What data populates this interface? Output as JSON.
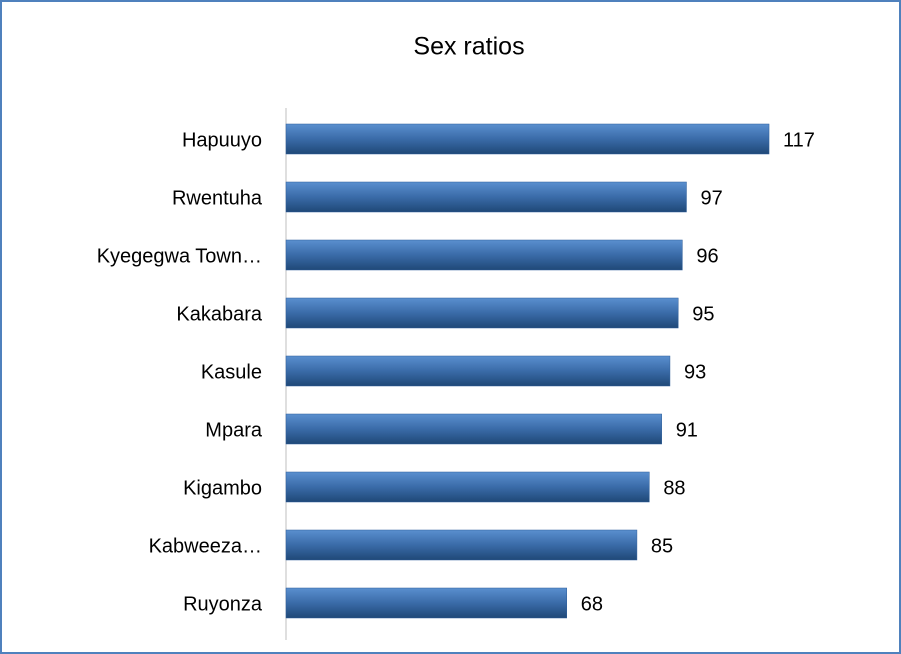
{
  "chart_data": {
    "type": "bar",
    "orientation": "horizontal",
    "title": "Sex ratios",
    "categories": [
      "Hapuuyo",
      "Rwentuha",
      "Kyegegwa Town…",
      "Kakabara",
      "Kasule",
      "Mpara",
      "Kigambo",
      "Kabweeza…",
      "Ruyonza"
    ],
    "values": [
      117,
      97,
      96,
      95,
      93,
      91,
      88,
      85,
      68
    ],
    "color": "#2f5f9a",
    "xlim": [
      0,
      140
    ]
  }
}
